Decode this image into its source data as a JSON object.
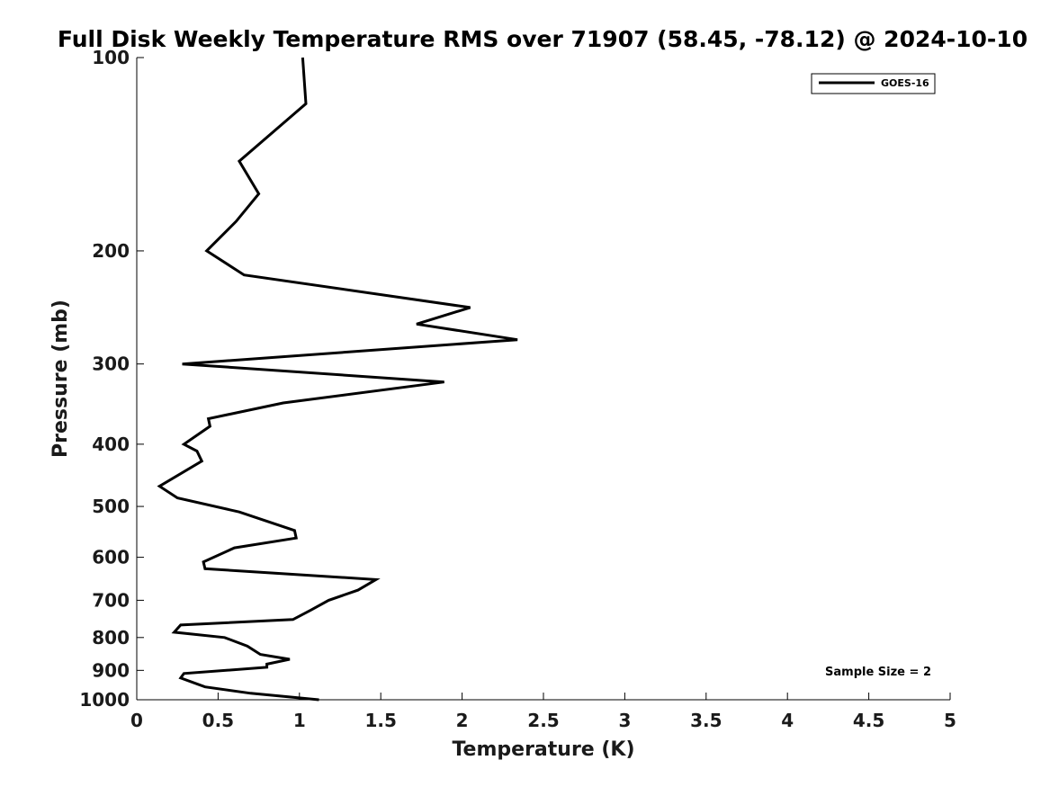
{
  "chart_data": {
    "type": "line",
    "title": "Full Disk Weekly Temperature RMS over 71907 (58.45, -78.12) @ 2024-10-10",
    "xlabel": "Temperature (K)",
    "ylabel": "Pressure (mb)",
    "xlim": [
      0,
      5
    ],
    "ylim": [
      100,
      1000
    ],
    "y_scale": "log",
    "y_inverted": true,
    "x_ticks": [
      "0",
      "0.5",
      "1",
      "1.5",
      "2",
      "2.5",
      "3",
      "3.5",
      "4",
      "4.5",
      "5"
    ],
    "y_ticks": [
      "100",
      "200",
      "300",
      "400",
      "500",
      "600",
      "700",
      "800",
      "900",
      "1000"
    ],
    "grid": false,
    "legend_position": "top-right",
    "series": [
      {
        "name": "GOES-16",
        "color": "#000000",
        "x": [
          1.12,
          0.7,
          0.42,
          0.27,
          0.29,
          0.8,
          0.8,
          0.94,
          0.76,
          0.68,
          0.54,
          0.23,
          0.27,
          0.96,
          1.07,
          1.18,
          1.36,
          1.47,
          0.42,
          0.41,
          0.6,
          0.98,
          0.97,
          0.63,
          0.25,
          0.14,
          0.4,
          0.37,
          0.29,
          0.45,
          0.44,
          0.9,
          1.89,
          0.28,
          2.34,
          1.72,
          2.05,
          0.66,
          0.43,
          0.61,
          0.75,
          0.63,
          1.04,
          1.02
        ],
        "y": [
          1000,
          977,
          955,
          925,
          910,
          890,
          880,
          865,
          850,
          825,
          800,
          785,
          765,
          750,
          725,
          700,
          675,
          650,
          625,
          610,
          580,
          560,
          545,
          510,
          485,
          465,
          425,
          410,
          400,
          375,
          365,
          345,
          320,
          300,
          275,
          260,
          245,
          218,
          200,
          180,
          163,
          145,
          118,
          100
        ]
      }
    ],
    "annotations": [
      "Sample Size = 2"
    ]
  }
}
